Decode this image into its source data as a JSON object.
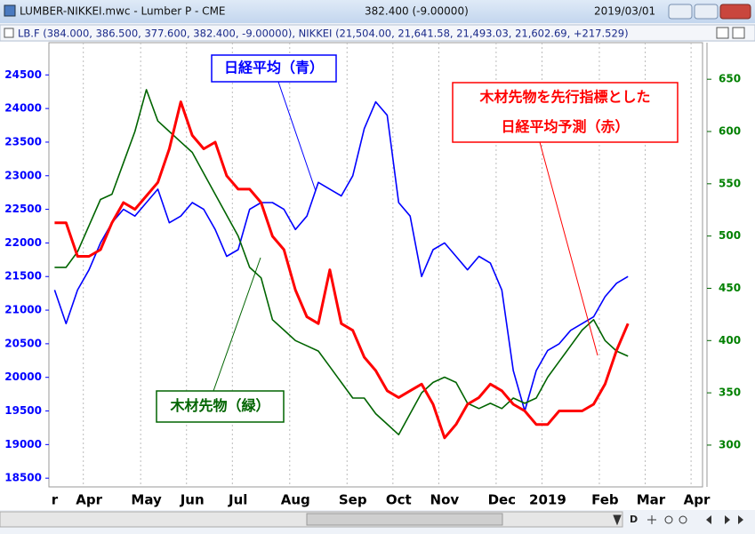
{
  "window": {
    "title": "LUMBER-NIKKEI.mwc - Lumber P - CME",
    "price": "382.400 (-9.00000)",
    "date": "2019/03/01",
    "subtitle": "LB.F (384.000, 386.500, 377.600, 382.400, -9.00000), NIKKEI (21,504.00, 21,641.58, 21,493.03, 21,602.69, +217.529)",
    "toolbar_label": "D"
  },
  "chart_data": {
    "type": "line",
    "categories": [
      "r",
      null,
      null,
      "Apr",
      null,
      null,
      null,
      null,
      "May",
      null,
      null,
      null,
      "Jun",
      null,
      null,
      null,
      "Jul",
      null,
      null,
      null,
      null,
      "Aug",
      null,
      null,
      null,
      null,
      "Sep",
      null,
      null,
      null,
      "Oct",
      null,
      null,
      null,
      "Nov",
      null,
      null,
      null,
      null,
      "Dec",
      null,
      null,
      null,
      "2019",
      null,
      null,
      null,
      null,
      "Feb",
      null,
      null,
      null,
      "Mar",
      null,
      null,
      null,
      "Apr"
    ],
    "series": [
      {
        "color": "#0000ff",
        "values": [
          21300,
          20800,
          21300,
          21600,
          22000,
          22300,
          22500,
          22400,
          22600,
          22800,
          22300,
          22400,
          22600,
          22500,
          22200,
          21800,
          21900,
          22500,
          22600,
          22600,
          22500,
          22200,
          22400,
          22900,
          22800,
          22700,
          23000,
          23700,
          24100,
          23900,
          22600,
          22400,
          21500,
          21900,
          22000,
          21800,
          21600,
          21800,
          21700,
          21300,
          20100,
          19500,
          20100,
          20400,
          20500,
          20700,
          20800,
          20900,
          21200,
          21400,
          21500,
          null,
          null,
          null,
          null,
          null,
          null
        ]
      },
      {
        "color": "#006400",
        "axis": "y2",
        "values": [
          470,
          470,
          485,
          510,
          535,
          540,
          570,
          600,
          640,
          610,
          600,
          590,
          580,
          560,
          540,
          520,
          500,
          470,
          460,
          420,
          410,
          400,
          395,
          390,
          375,
          360,
          345,
          345,
          330,
          320,
          310,
          330,
          350,
          360,
          365,
          360,
          340,
          335,
          340,
          335,
          345,
          340,
          345,
          365,
          380,
          395,
          410,
          420,
          400,
          390,
          385,
          null,
          null,
          null,
          null,
          null,
          null
        ]
      },
      {
        "color": "#ff0000",
        "values": [
          22300,
          22300,
          21800,
          21800,
          21900,
          22300,
          22600,
          22500,
          22700,
          22900,
          23400,
          24100,
          23600,
          23400,
          23500,
          23000,
          22800,
          22800,
          22600,
          22100,
          21900,
          21300,
          20900,
          20800,
          21600,
          20800,
          20700,
          20300,
          20100,
          19800,
          19700,
          19800,
          19900,
          19600,
          19100,
          19300,
          19600,
          19700,
          19900,
          19800,
          19600,
          19500,
          19300,
          19300,
          19500,
          19500,
          19500,
          19600,
          19900,
          20400,
          20800,
          null,
          null,
          null,
          null,
          null,
          null
        ]
      }
    ],
    "ylim": [
      18370,
      24980
    ],
    "yticks": [
      18500,
      19000,
      19500,
      20000,
      20500,
      21000,
      21500,
      22000,
      22500,
      23000,
      23500,
      24000,
      24500
    ],
    "y2lim": [
      260,
      685
    ],
    "y2ticks": [
      300,
      350,
      400,
      450,
      500,
      550,
      600,
      650
    ],
    "annotations": [
      {
        "lines": [
          "日経平均（青）"
        ],
        "color": "#0000ff"
      },
      {
        "lines": [
          "木材先物を先行指標とした",
          "日経平均予測（赤）"
        ],
        "color": "#ff0000"
      },
      {
        "lines": [
          "木材先物（緑）"
        ],
        "color": "#006400"
      }
    ]
  }
}
